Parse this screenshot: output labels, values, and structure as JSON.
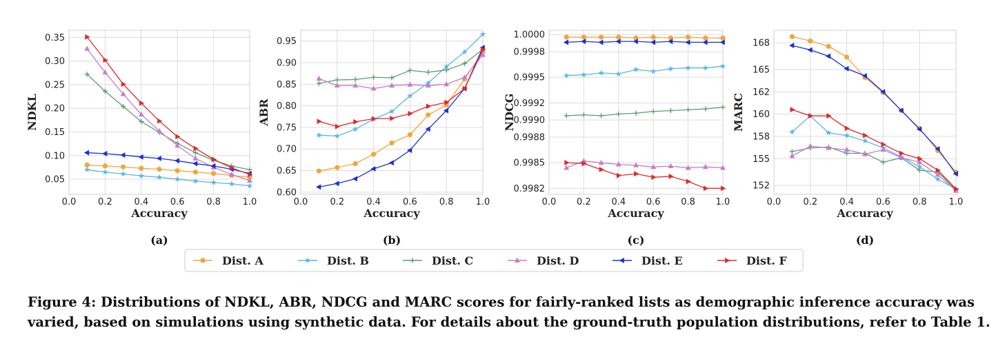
{
  "figure": {
    "caption_line1": "Figure 4: Distributions of NDKL, ABR, NDCG and MARC scores for fairly-ranked lists as demographic inference accuracy was",
    "caption_line2": "varied, based on simulations using synthetic data. For details about the ground-truth population distributions, refer to Table 1."
  },
  "legend": [
    {
      "name": "Dist. A",
      "color": "#f4a43a",
      "marker": "circle"
    },
    {
      "name": "Dist. B",
      "color": "#5ab6e8",
      "marker": "star"
    },
    {
      "name": "Dist. C",
      "color": "#5a9f6e",
      "marker": "plus"
    },
    {
      "name": "Dist. D",
      "color": "#c77ccd",
      "marker": "triangle-up"
    },
    {
      "name": "Dist. E",
      "color": "#1a2fd6",
      "marker": "triangle-left"
    },
    {
      "name": "Dist. F",
      "color": "#dc2b2b",
      "marker": "triangle-right"
    }
  ],
  "chart_data": [
    {
      "type": "line",
      "panel_label": "(a)",
      "xlabel": "Accuracy",
      "ylabel": "NDKL",
      "xlim": [
        0.0,
        1.0
      ],
      "ylim": [
        0.018,
        0.365
      ],
      "xticks": [
        0.0,
        0.2,
        0.4,
        0.6,
        0.8,
        1.0
      ],
      "xtick_labels": [
        "0.0",
        "0.2",
        "0.4",
        "0.6",
        "0.8",
        "1.0"
      ],
      "yticks": [
        0.05,
        0.1,
        0.15,
        0.2,
        0.25,
        0.3,
        0.35
      ],
      "ytick_labels": [
        "0.05",
        "0.10",
        "0.15",
        "0.20",
        "0.25",
        "0.30",
        "0.35"
      ],
      "grid": true,
      "x": [
        0.1,
        0.2,
        0.3,
        0.4,
        0.5,
        0.6,
        0.7,
        0.8,
        0.9,
        1.0
      ],
      "series": [
        {
          "name": "Dist. A",
          "values": [
            0.08,
            0.078,
            0.076,
            0.073,
            0.071,
            0.068,
            0.065,
            0.062,
            0.058,
            0.054
          ]
        },
        {
          "name": "Dist. B",
          "values": [
            0.07,
            0.065,
            0.061,
            0.057,
            0.054,
            0.05,
            0.046,
            0.043,
            0.04,
            0.036
          ]
        },
        {
          "name": "Dist. C",
          "values": [
            0.272,
            0.236,
            0.204,
            0.172,
            0.149,
            0.126,
            0.106,
            0.09,
            0.078,
            0.07
          ]
        },
        {
          "name": "Dist. D",
          "values": [
            0.326,
            0.276,
            0.23,
            0.187,
            0.152,
            0.121,
            0.094,
            0.075,
            0.06,
            0.047
          ]
        },
        {
          "name": "Dist. E",
          "values": [
            0.106,
            0.104,
            0.101,
            0.097,
            0.094,
            0.089,
            0.083,
            0.078,
            0.071,
            0.062
          ]
        },
        {
          "name": "Dist. F",
          "values": [
            0.351,
            0.302,
            0.251,
            0.211,
            0.173,
            0.14,
            0.115,
            0.092,
            0.074,
            0.06
          ]
        }
      ]
    },
    {
      "type": "line",
      "panel_label": "(b)",
      "xlabel": "Accuracy",
      "ylabel": "ABR",
      "xlim": [
        0.0,
        1.0
      ],
      "ylim": [
        0.595,
        0.975
      ],
      "xticks": [
        0.0,
        0.2,
        0.4,
        0.6,
        0.8,
        1.0
      ],
      "xtick_labels": [
        "0.0",
        "0.2",
        "0.4",
        "0.6",
        "0.8",
        "1.0"
      ],
      "yticks": [
        0.6,
        0.65,
        0.7,
        0.75,
        0.8,
        0.85,
        0.9,
        0.95
      ],
      "ytick_labels": [
        "0.60",
        "0.65",
        "0.70",
        "0.75",
        "0.80",
        "0.85",
        "0.90",
        "0.95"
      ],
      "grid": true,
      "x": [
        0.1,
        0.2,
        0.3,
        0.4,
        0.5,
        0.6,
        0.7,
        0.8,
        0.9,
        1.0
      ],
      "series": [
        {
          "name": "Dist. A",
          "values": [
            0.649,
            0.657,
            0.666,
            0.688,
            0.714,
            0.733,
            0.779,
            0.802,
            0.862,
            0.925
          ]
        },
        {
          "name": "Dist. B",
          "values": [
            0.732,
            0.73,
            0.746,
            0.769,
            0.787,
            0.823,
            0.853,
            0.891,
            0.925,
            0.966
          ]
        },
        {
          "name": "Dist. C",
          "values": [
            0.852,
            0.86,
            0.861,
            0.866,
            0.865,
            0.882,
            0.878,
            0.883,
            0.898,
            0.931
          ]
        },
        {
          "name": "Dist. D",
          "values": [
            0.863,
            0.847,
            0.847,
            0.84,
            0.847,
            0.849,
            0.847,
            0.85,
            0.866,
            0.918
          ]
        },
        {
          "name": "Dist. E",
          "values": [
            0.612,
            0.62,
            0.631,
            0.654,
            0.668,
            0.697,
            0.746,
            0.789,
            0.84,
            0.935
          ]
        },
        {
          "name": "Dist. F",
          "values": [
            0.764,
            0.752,
            0.763,
            0.77,
            0.771,
            0.782,
            0.799,
            0.808,
            0.84,
            0.93
          ]
        }
      ]
    },
    {
      "type": "line",
      "panel_label": "(c)",
      "xlabel": "Accuracy",
      "ylabel": "NDCG",
      "xlim": [
        0.0,
        1.0
      ],
      "ylim": [
        0.99813,
        1.00005
      ],
      "xticks": [
        0.0,
        0.2,
        0.4,
        0.6,
        0.8,
        1.0
      ],
      "xtick_labels": [
        "0.0",
        "0.2",
        "0.4",
        "0.6",
        "0.8",
        "1.0"
      ],
      "yticks": [
        0.9982,
        0.9985,
        0.9988,
        0.999,
        0.9992,
        0.9995,
        0.9998,
        1.0
      ],
      "ytick_labels": [
        "0.9982",
        "0.9985",
        "0.9988",
        "0.9990",
        "0.9992",
        "0.9995",
        "0.9998",
        "1.0000"
      ],
      "grid": true,
      "x": [
        0.1,
        0.2,
        0.3,
        0.4,
        0.5,
        0.6,
        0.7,
        0.8,
        0.9,
        1.0
      ],
      "series": [
        {
          "name": "Dist. A",
          "values": [
            0.99997,
            0.99997,
            0.99997,
            0.99997,
            0.99996,
            0.99997,
            0.99996,
            0.99997,
            0.99996,
            0.99996
          ]
        },
        {
          "name": "Dist. B",
          "values": [
            0.99952,
            0.99953,
            0.99955,
            0.99954,
            0.99959,
            0.99957,
            0.9996,
            0.99961,
            0.99961,
            0.99963
          ]
        },
        {
          "name": "Dist. C",
          "values": [
            0.99905,
            0.99906,
            0.99905,
            0.99907,
            0.99908,
            0.9991,
            0.99911,
            0.99912,
            0.99913,
            0.99915
          ]
        },
        {
          "name": "Dist. D",
          "values": [
            0.99844,
            0.99852,
            0.9985,
            0.99848,
            0.99847,
            0.99845,
            0.99846,
            0.99844,
            0.99845,
            0.99844
          ]
        },
        {
          "name": "Dist. E",
          "values": [
            0.99991,
            0.99992,
            0.99991,
            0.99992,
            0.99992,
            0.99991,
            0.99992,
            0.99991,
            0.99991,
            0.99991
          ]
        },
        {
          "name": "Dist. F",
          "values": [
            0.9985,
            0.99849,
            0.99842,
            0.99835,
            0.99837,
            0.99833,
            0.99834,
            0.99828,
            0.9982,
            0.9982
          ]
        }
      ]
    },
    {
      "type": "line",
      "panel_label": "(d)",
      "xlabel": "Accuracy",
      "ylabel": "MARC",
      "xlim": [
        0.0,
        1.0
      ],
      "ylim": [
        151.0,
        169.4
      ],
      "xticks": [
        0.0,
        0.2,
        0.4,
        0.6,
        0.8,
        1.0
      ],
      "xtick_labels": [
        "0.0",
        "0.2",
        "0.4",
        "0.6",
        "0.8",
        "1.0"
      ],
      "yticks": [
        152.0,
        155.0,
        157.5,
        160.0,
        162.5,
        165.0,
        168.0
      ],
      "ytick_labels": [
        "152",
        "155",
        "158",
        "160",
        "162",
        "165",
        "168"
      ],
      "grid": true,
      "x": [
        0.1,
        0.2,
        0.3,
        0.4,
        0.5,
        0.6,
        0.7,
        0.8,
        0.9,
        1.0
      ],
      "series": [
        {
          "name": "Dist. A",
          "values": [
            168.7,
            168.2,
            167.6,
            166.4,
            164.1,
            162.4,
            160.4,
            158.4,
            155.9,
            153.5
          ]
        },
        {
          "name": "Dist. B",
          "values": [
            158.0,
            159.8,
            157.9,
            157.6,
            157.0,
            156.2,
            155.2,
            154.1,
            152.7,
            151.6
          ]
        },
        {
          "name": "Dist. C",
          "values": [
            155.8,
            156.2,
            156.3,
            155.6,
            155.6,
            154.6,
            155.1,
            153.7,
            153.5,
            151.5
          ]
        },
        {
          "name": "Dist. D",
          "values": [
            155.3,
            156.4,
            156.2,
            156.0,
            155.5,
            156.0,
            155.1,
            154.6,
            153.2,
            151.4
          ]
        },
        {
          "name": "Dist. E",
          "values": [
            167.7,
            167.2,
            166.5,
            165.1,
            164.3,
            162.5,
            160.4,
            158.3,
            156.1,
            153.3
          ]
        },
        {
          "name": "Dist. F",
          "values": [
            160.5,
            159.8,
            159.8,
            158.4,
            157.6,
            156.6,
            155.6,
            155.0,
            153.7,
            151.6
          ]
        }
      ]
    }
  ]
}
